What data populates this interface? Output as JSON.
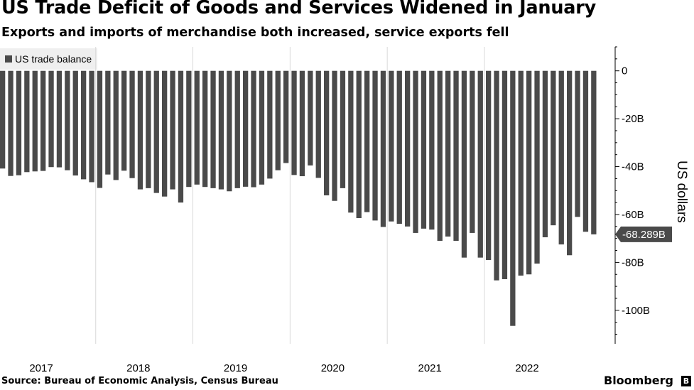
{
  "title": "US Trade Deficit of Goods and Services Widened in January",
  "subtitle": "Exports and imports of merchandise both increased, service exports fell",
  "source": "Source: Bureau of Economic Analysis, Census Bureau",
  "brand": "Bloomberg",
  "brand_icon": "Bloomberg terminal icon",
  "colors": {
    "bar": "#4a4a4a",
    "grid": "#d9d9d9",
    "callout": "#4a4a4a",
    "legend_bg": "#efefef"
  },
  "chart_data": {
    "type": "bar",
    "title": "US Trade Deficit of Goods and Services Widened in January",
    "xlabel": "",
    "ylabel": "US dollars",
    "ylim": [
      -114,
      10
    ],
    "y_ticks": [
      0,
      -20,
      -40,
      -60,
      -80,
      -100
    ],
    "y_tick_labels": [
      "0",
      "-20B",
      "-40B",
      "-60B",
      "-80B",
      "-100B"
    ],
    "x_tick_labels": [
      "2017",
      "2018",
      "2019",
      "2020",
      "2021",
      "2022"
    ],
    "x_tick_positions": [
      0,
      12,
      24,
      36,
      48,
      60
    ],
    "legend": [
      "US trade balance"
    ],
    "last_value_label": "-68.289B",
    "series": [
      {
        "name": "US trade balance",
        "values": [
          -40.8,
          -43.9,
          -43.6,
          -42.3,
          -42.0,
          -41.8,
          -40.2,
          -40.3,
          -41.5,
          -43.7,
          -45.3,
          -46.5,
          -48.9,
          -43.3,
          -45.6,
          -41.7,
          -44.8,
          -49.5,
          -49.0,
          -51.0,
          -52.5,
          -49.5,
          -55.0,
          -48.5,
          -47.5,
          -48.5,
          -49.0,
          -49.5,
          -50.3,
          -49.0,
          -48.4,
          -48.6,
          -47.5,
          -45.0,
          -41.5,
          -38.5,
          -43.5,
          -44.0,
          -39.5,
          -44.7,
          -52.0,
          -54.3,
          -49.0,
          -59.2,
          -61.5,
          -59.0,
          -62.5,
          -65.2,
          -62.9,
          -63.9,
          -65.0,
          -67.7,
          -65.9,
          -66.3,
          -71.0,
          -69.2,
          -71.0,
          -78.0,
          -67.7,
          -78.0,
          -79.0,
          -87.5,
          -87.0,
          -106.5,
          -85.5,
          -85.0,
          -80.5,
          -69.5,
          -64.5,
          -72.5,
          -77.0,
          -61.0,
          -67.2,
          -68.289
        ]
      }
    ]
  }
}
